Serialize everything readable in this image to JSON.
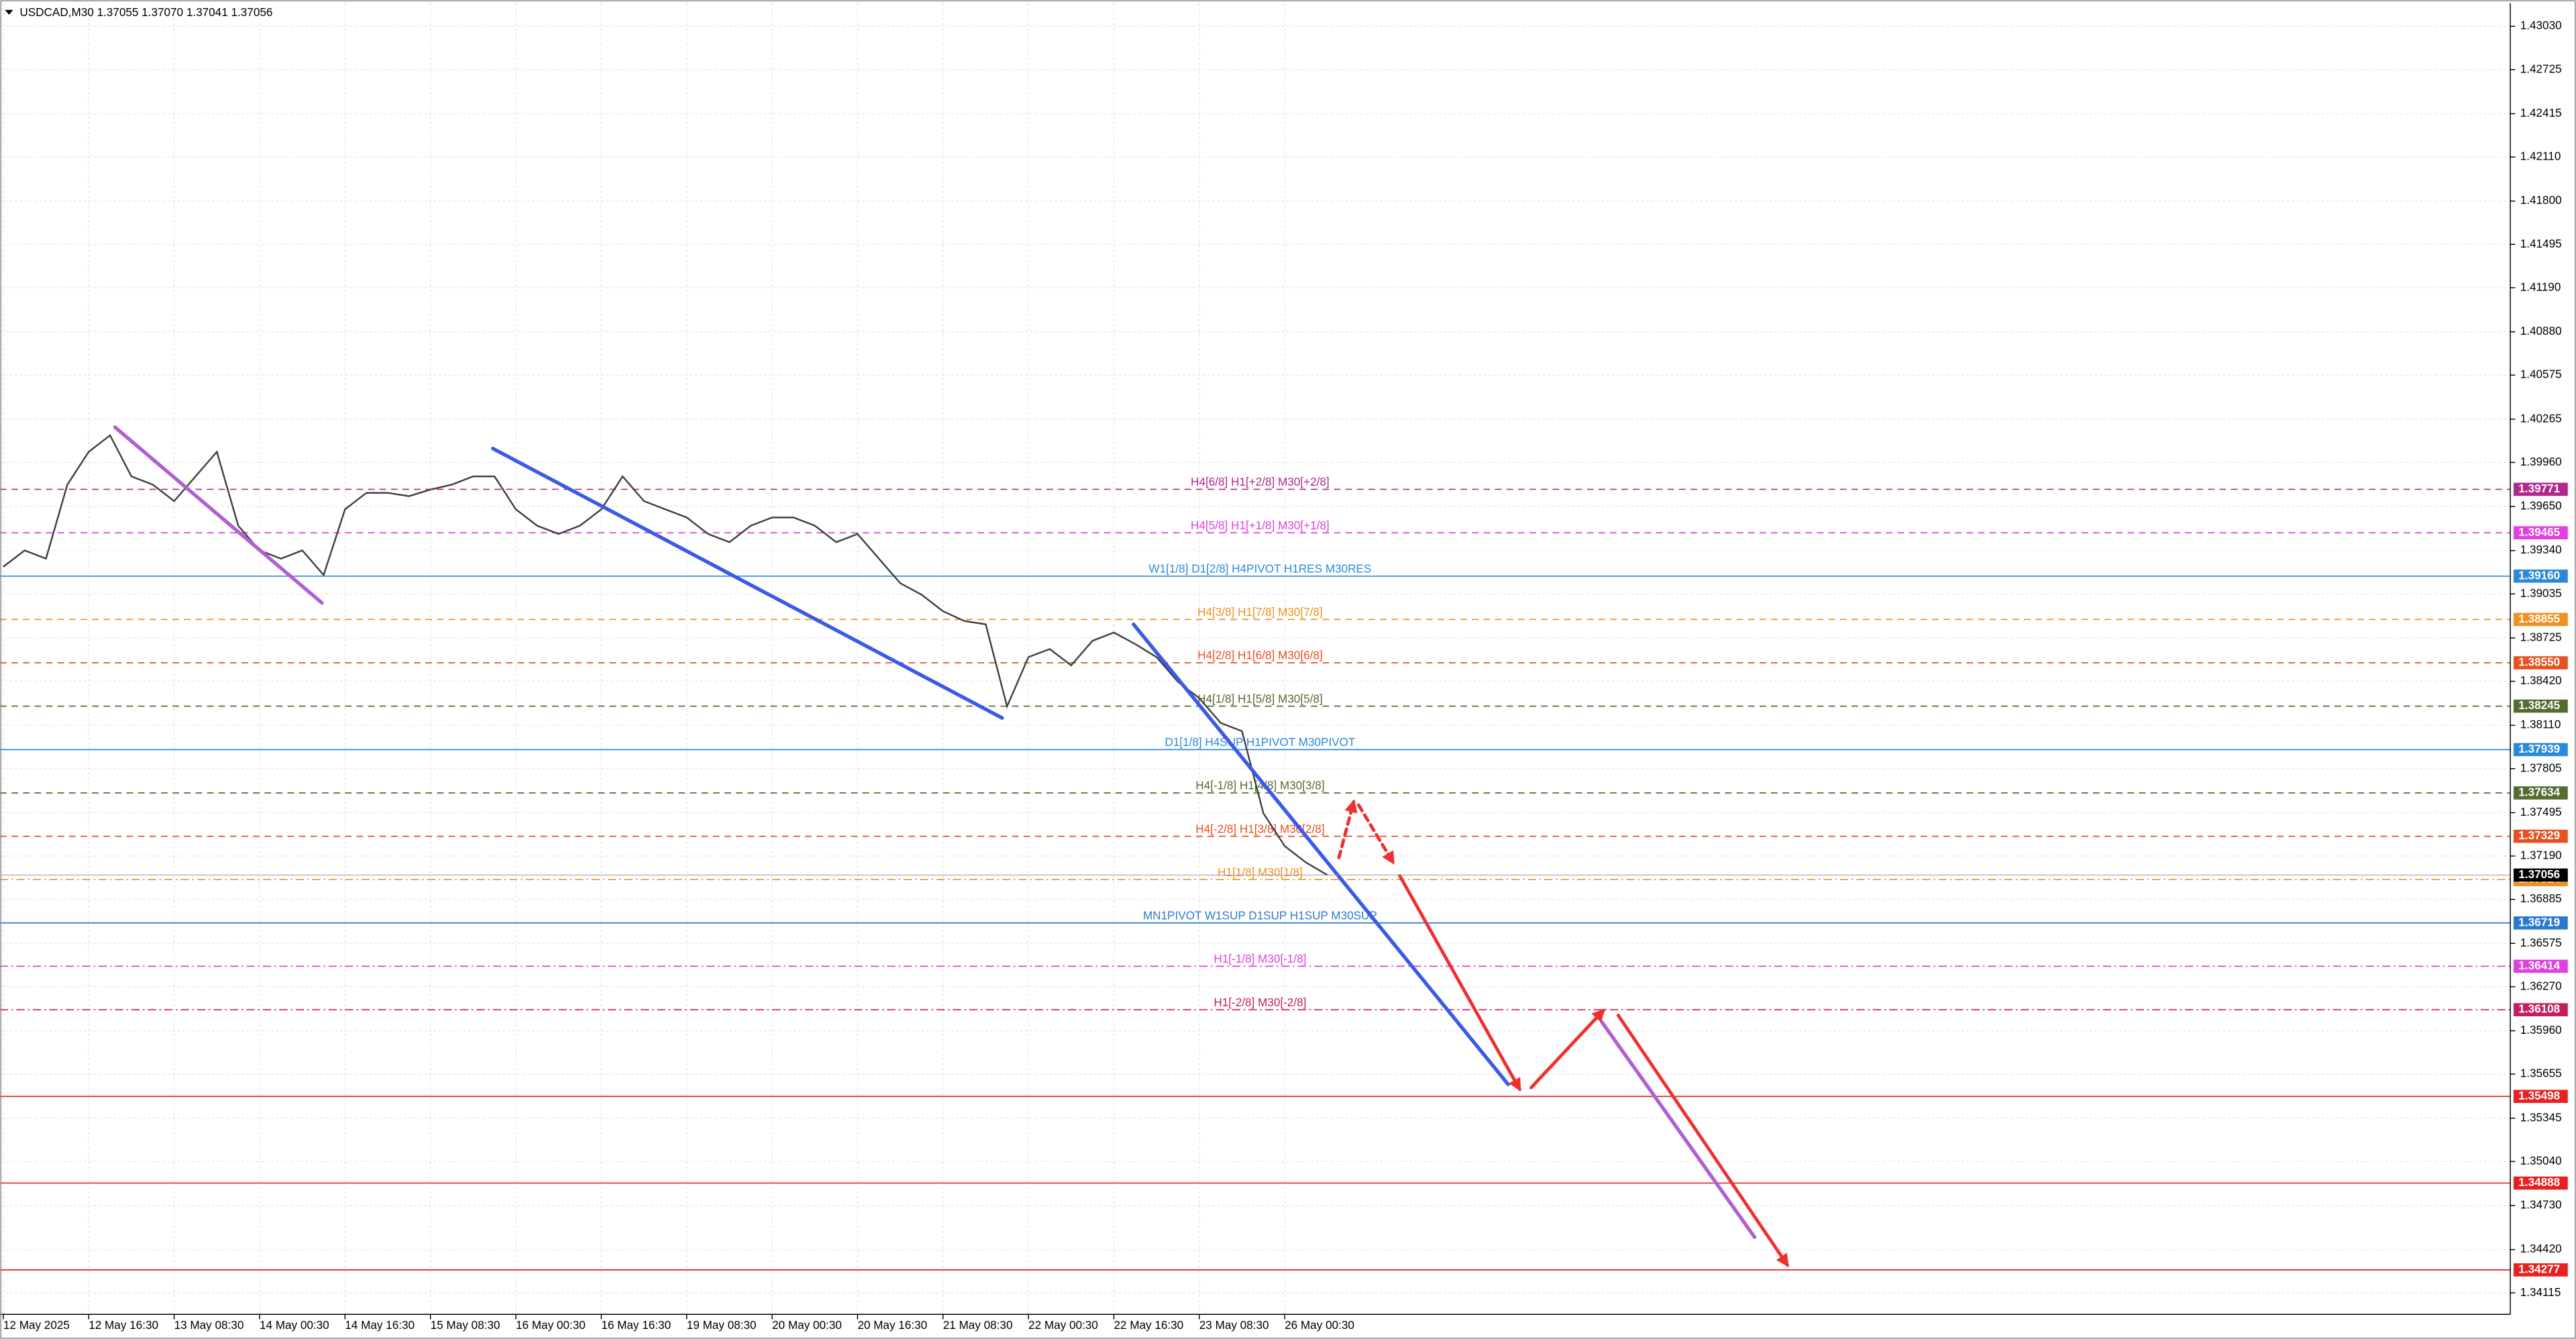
{
  "chart_data": {
    "type": "line",
    "title": "USDCAD,M30  1.37055 1.37070 1.37041 1.37056",
    "categories": [
      "12 May 2025",
      null,
      null,
      null,
      "12 May 16:30",
      null,
      null,
      null,
      "13 May 08:30",
      null,
      null,
      null,
      "14 May 00:30",
      null,
      null,
      null,
      "14 May 16:30",
      null,
      null,
      null,
      "15 May 08:30",
      null,
      null,
      null,
      "16 May 00:30",
      null,
      null,
      null,
      "16 May 16:30",
      null,
      null,
      null,
      "19 May 08:30",
      null,
      null,
      null,
      "20 May 00:30",
      null,
      null,
      null,
      "20 May 16:30",
      null,
      null,
      null,
      "21 May 08:30",
      null,
      null,
      null,
      "22 May 00:30",
      null,
      null,
      null,
      "22 May 16:30",
      null,
      null,
      null,
      "23 May 08:30",
      null,
      null,
      null,
      "26 May 00:30",
      null,
      null
    ],
    "values": [
      1.39226,
      1.39341,
      1.39283,
      1.39804,
      1.40035,
      1.40151,
      1.39862,
      1.39804,
      1.39688,
      1.39862,
      1.40035,
      1.39515,
      1.39341,
      1.39283,
      1.39341,
      1.39168,
      1.3963,
      1.39746,
      1.39746,
      1.39723,
      1.39769,
      1.39804,
      1.39862,
      1.39862,
      1.3963,
      1.39515,
      1.39457,
      1.39515,
      1.3963,
      1.39862,
      1.39688,
      1.3963,
      1.39573,
      1.39457,
      1.39399,
      1.39515,
      1.39573,
      1.39573,
      1.39515,
      1.39399,
      1.39457,
      1.39283,
      1.3911,
      1.39029,
      1.38913,
      1.38844,
      1.38821,
      1.38243,
      1.3859,
      1.38647,
      1.38532,
      1.38705,
      1.38763,
      1.38682,
      1.3859,
      1.38416,
      1.38301,
      1.38127,
      1.38069,
      1.37491,
      1.3726,
      1.37144,
      1.37056
    ],
    "color": "#404040",
    "current_price": 1.37056,
    "ylim": [
      1.33964,
      1.43192
    ],
    "yticks": [
      {
        "value": 1.4303,
        "label": "1.43030"
      },
      1.42725,
      1.42415,
      {
        "value": 1.4211,
        "label": "1.42110"
      },
      {
        "value": 1.418,
        "label": "1.41800"
      },
      1.41495,
      {
        "value": 1.4119,
        "label": "1.41190"
      },
      {
        "value": 1.4088,
        "label": "1.40880"
      },
      1.40575,
      1.40265,
      {
        "value": 1.3996,
        "label": "1.39960"
      },
      {
        "value": 1.3965,
        "label": "1.39650"
      },
      {
        "value": 1.3934,
        "label": "1.39340"
      },
      1.39035,
      1.38725,
      {
        "value": 1.3842,
        "label": "1.38420"
      },
      {
        "value": 1.3811,
        "label": "1.38110"
      },
      1.37805,
      1.37495,
      {
        "value": 1.3719,
        "label": "1.37190"
      },
      1.36885,
      1.36575,
      {
        "value": 1.3627,
        "label": "1.36270"
      },
      {
        "value": 1.3596,
        "label": "1.35960"
      },
      1.35655,
      1.35345,
      {
        "value": 1.3504,
        "label": "1.35040"
      },
      {
        "value": 1.3473,
        "label": "1.34730"
      },
      {
        "value": 1.3442,
        "label": "1.34420"
      },
      1.34115
    ],
    "grid": true,
    "levels": [
      {
        "price": 1.39771,
        "text": "H4[6/8] H1[+2/8] M30[+2/8]",
        "color": "#b0288c",
        "style": "dashed"
      },
      {
        "price": 1.39465,
        "text": "H4[5/8] H1[+1/8] M30[+1/8]",
        "color": "#e040e0",
        "style": "dashed"
      },
      {
        "price": {
          "value": 1.3916,
          "label": "1.39160"
        },
        "text": "W1[1/8] D1[2/8] H4PIVOT H1RES M30RES",
        "color": "#2a8ad8",
        "style": "solid"
      },
      {
        "price": 1.38855,
        "text": "H4[3/8] H1[7/8] M30[7/8]",
        "color": "#f09020",
        "style": "dashed"
      },
      {
        "price": {
          "value": 1.3855,
          "label": "1.38550"
        },
        "text": "H4[2/8] H1[6/8] M30[6/8]",
        "color": "#e85020",
        "style": "dashed"
      },
      {
        "price": 1.38245,
        "text": "H4[1/8] H1[5/8] M30[5/8]",
        "color": "#556b2f",
        "style": "dashed"
      },
      {
        "price": 1.37939,
        "text": "D1[1/8] H4SUP H1PIVOT M30PIVOT",
        "color": "#2a8ad8",
        "style": "solid"
      },
      {
        "price": 1.37634,
        "text": "H4[-1/8] H1[4/8] M30[3/8]",
        "color": "#556b2f",
        "style": "dashed"
      },
      {
        "price": 1.37329,
        "text": "H4[-2/8] H1[3/8] M30[2/8]",
        "color": "#e85020",
        "style": "dashed"
      },
      {
        "price": 1.37024,
        "text": "H1[1/8] M30[1/8]",
        "color": "#f09020",
        "style": "dashdot"
      },
      {
        "price": 1.36719,
        "text": "MN1PIVOT W1SUP D1SUP H1SUP M30SUP",
        "color": "#2a7ad0",
        "style": "solid"
      },
      {
        "price": 1.36414,
        "text": "H1[-1/8] M30[-1/8]",
        "color": "#e040e0",
        "style": "dashdot"
      },
      {
        "price": 1.36108,
        "text": "H1[-2/8] M30[-2/8]",
        "color": "#c02060",
        "style": "dashdot"
      },
      {
        "price": 1.35498,
        "color": "#e82020",
        "style": "solid"
      },
      {
        "price": 1.34888,
        "color": "#e82020",
        "style": "solid"
      },
      {
        "price": 1.34277,
        "color": "#e82020",
        "style": "solid"
      }
    ]
  }
}
